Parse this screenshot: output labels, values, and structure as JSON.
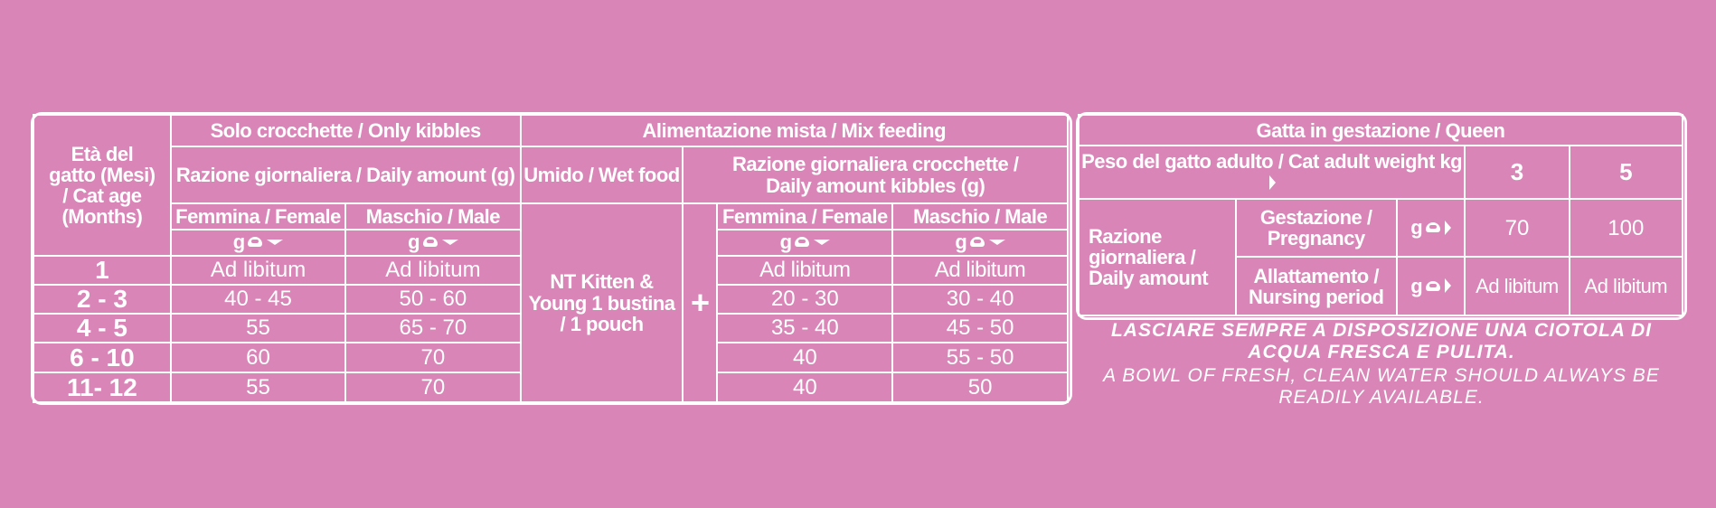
{
  "left": {
    "age_header": "Età del gatto (Mesi) / Cat age (Months)",
    "only_kibbles": "Solo crocchette / Only kibbles",
    "mix_feeding": "Alimentazione mista / Mix feeding",
    "daily_amount": "Razione giornaliera / Daily amount (g)",
    "wet_food": "Umido / Wet food",
    "daily_kibbles": "Razione giornaliera crocchette / Daily amount kibbles (g)",
    "female": "Femmina / Female",
    "male": "Maschio / Male",
    "unit_g": "g",
    "wet_food_desc": "NT Kitten & Young 1 bustina / 1 pouch",
    "plus": "+",
    "rows": [
      {
        "age": "1",
        "only_f": "Ad libitum",
        "only_m": "Ad libitum",
        "mix_f": "Ad libitum",
        "mix_m": "Ad libitum"
      },
      {
        "age": "2 - 3",
        "only_f": "40 - 45",
        "only_m": "50 - 60",
        "mix_f": "20 - 30",
        "mix_m": "30 - 40"
      },
      {
        "age": "4 - 5",
        "only_f": "55",
        "only_m": "65 - 70",
        "mix_f": "35 - 40",
        "mix_m": "45 - 50"
      },
      {
        "age": "6 - 10",
        "only_f": "60",
        "only_m": "70",
        "mix_f": "40",
        "mix_m": "55 - 50"
      },
      {
        "age": "11- 12",
        "only_f": "55",
        "only_m": "70",
        "mix_f": "40",
        "mix_m": "50"
      }
    ]
  },
  "right": {
    "title": "Gatta in gestazione / Queen",
    "weight_label": "Peso del gatto adulto / Cat adult weight",
    "weight_unit": "kg",
    "weights": [
      "3",
      "5"
    ],
    "ration_label": "Razione giornaliera / Daily amount",
    "unit_g": "g",
    "pregnancy": {
      "label": "Gestazione / Pregnancy",
      "values": [
        "70",
        "100"
      ]
    },
    "nursing": {
      "label": "Allattamento / Nursing period",
      "values": [
        "Ad libitum",
        "Ad libitum"
      ]
    }
  },
  "notes": {
    "it": "LASCIARE SEMPRE A DISPOSIZIONE UNA CIOTOLA DI ACQUA FRESCA E PULITA.",
    "en": "A BOWL OF FRESH, CLEAN WATER SHOULD ALWAYS BE READILY AVAILABLE."
  }
}
